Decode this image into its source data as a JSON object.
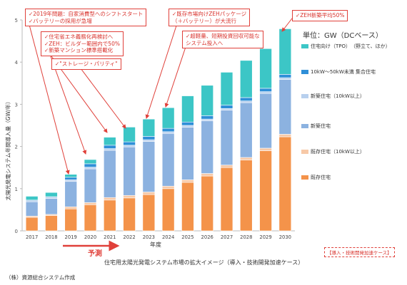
{
  "chart_data": {
    "type": "bar",
    "stacked": true,
    "categories": [
      "2017",
      "2018",
      "2019",
      "2020",
      "2021",
      "2022",
      "2023",
      "2024",
      "2025",
      "2026",
      "2027",
      "2028",
      "2029",
      "2030"
    ],
    "xlabel": "年度",
    "ylabel": "太陽光発電システム年間導入量（GW/年）",
    "ylim": [
      0,
      5
    ],
    "yticks": [
      0,
      1,
      2,
      3,
      4,
      5
    ],
    "grid": false,
    "series": [
      {
        "name": "既存住宅",
        "color": "#f4934a",
        "values": [
          0.32,
          0.36,
          0.52,
          0.62,
          0.73,
          0.78,
          0.86,
          1.0,
          1.15,
          1.3,
          1.5,
          1.68,
          1.9,
          2.23
        ]
      },
      {
        "name": "既存住宅（10kW以上）",
        "color": "#f7c9a7",
        "values": [
          0.03,
          0.03,
          0.05,
          0.05,
          0.06,
          0.06,
          0.06,
          0.06,
          0.06,
          0.06,
          0.06,
          0.06,
          0.06,
          0.06
        ]
      },
      {
        "name": "新築住宅",
        "color": "#8cb2e0",
        "values": [
          0.34,
          0.38,
          0.6,
          0.8,
          1.12,
          1.15,
          1.2,
          1.25,
          1.25,
          1.25,
          1.3,
          1.3,
          1.3,
          1.3
        ]
      },
      {
        "name": "新築住宅（10kW以上）",
        "color": "#b8d0ee",
        "values": [
          0.04,
          0.04,
          0.04,
          0.04,
          0.04,
          0.04,
          0.04,
          0.04,
          0.04,
          0.04,
          0.04,
          0.04,
          0.04,
          0.04
        ]
      },
      {
        "name": "10kW～50kW未満 集合住宅",
        "color": "#2f8fd8",
        "values": [
          0.0,
          0.0,
          0.06,
          0.08,
          0.08,
          0.08,
          0.08,
          0.08,
          0.08,
          0.08,
          0.08,
          0.08,
          0.08,
          0.08
        ]
      },
      {
        "name": "住宅向け（TPO）（野立て、ほか）",
        "color": "#3cc6c6",
        "values": [
          0.09,
          0.1,
          0.07,
          0.1,
          0.19,
          0.35,
          0.41,
          0.49,
          0.62,
          0.72,
          0.78,
          0.88,
          0.94,
          1.08
        ]
      }
    ]
  },
  "legend": {
    "unit": "単位：GW（DCベース）",
    "items": [
      {
        "label": "住宅向け（TPO）　（野立て、ほか）",
        "color": "#3cc6c6"
      },
      {
        "label": "10kW～50kW未満 集合住宅",
        "color": "#2f8fd8"
      },
      {
        "label": "新築住宅（10kW以上）",
        "color": "#b8d0ee"
      },
      {
        "label": "新築住宅",
        "color": "#8cb2e0"
      },
      {
        "label": "既存住宅（10kW以上）",
        "color": "#f7c9a7"
      },
      {
        "label": "既存住宅",
        "color": "#f4934a"
      }
    ]
  },
  "callouts": {
    "c1": [
      "✓2019年問題：自家消費型へのシフトスタート",
      "✓バッテリーの採用が急増"
    ],
    "c2": [
      "✓住宅省エネ義務化再検討へ",
      "✓ZEH：ビルダー範囲内で50%",
      "✓新築マンション標準搭載化"
    ],
    "c3": [
      "✓\"ストレージ・パリティ\""
    ],
    "c4": [
      "✓既存市場向けZEHパッケージ",
      "（＋バッテリー）が大流行"
    ],
    "c5": [
      "✓超軽量、短期投資回収可能な",
      "システム投入へ"
    ],
    "c6": [
      "✓ZEH新築平均50%"
    ]
  },
  "forecast_label": "予測",
  "scenario_note": "【導入・技術開発加速ケース】",
  "caption": "住宅用太陽光発電システム市場の拡大イメージ（導入・技術開発加速ケース）",
  "source": "（株）資源総合システム作成"
}
